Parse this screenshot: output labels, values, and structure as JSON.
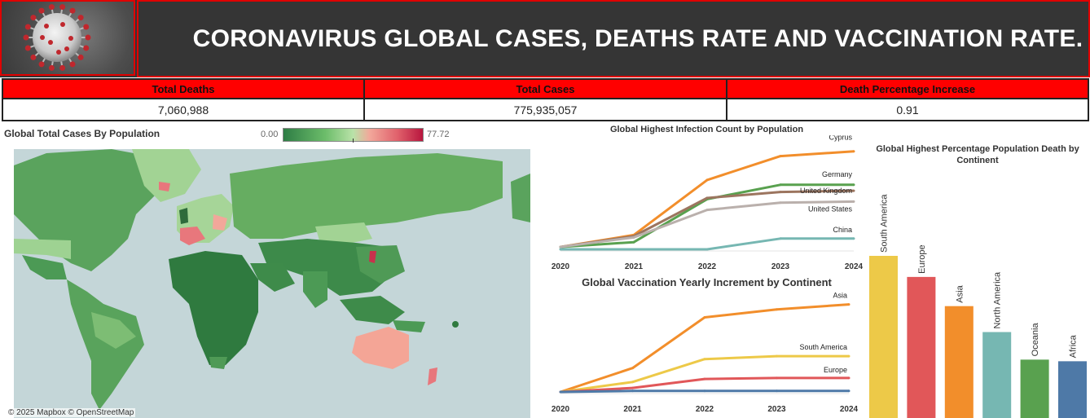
{
  "header": {
    "title": "CORONAVIRUS GLOBAL CASES, DEATHS RATE AND VACCINATION RATE."
  },
  "kpis": [
    {
      "label": "Total Deaths",
      "value": "7,060,988"
    },
    {
      "label": "Total Cases",
      "value": "775,935,057"
    },
    {
      "label": "Death Percentage Increase",
      "value": "0.91"
    }
  ],
  "map": {
    "title": "Global Total Cases By Population",
    "legend_min": "0.00",
    "legend_max": "77.72",
    "attribution": "© 2025 Mapbox © OpenStreetMap",
    "colors": {
      "low": "#2e7d45",
      "mid": "#a8d89a",
      "high": "#c9304b",
      "ocean": "#c4d6d8"
    }
  },
  "chart_data": [
    {
      "type": "line",
      "title": "Global Highest Infection Count by Population",
      "x": [
        "2020",
        "2021",
        "2022",
        "2023",
        "2024"
      ],
      "series": [
        {
          "name": "Cyprus",
          "values": [
            2,
            12,
            58,
            78,
            82
          ],
          "color": "#f28e2b"
        },
        {
          "name": "Germany",
          "values": [
            2,
            6,
            42,
            54,
            54
          ],
          "color": "#59a14f"
        },
        {
          "name": "United Kingdom",
          "values": [
            2,
            11,
            43,
            48,
            49
          ],
          "color": "#9c755f"
        },
        {
          "name": "United States",
          "values": [
            2,
            10,
            33,
            39,
            40
          ],
          "color": "#bab0ac"
        },
        {
          "name": "China",
          "values": [
            0,
            0,
            0,
            9,
            9
          ],
          "color": "#76b7b2"
        }
      ],
      "ylim": [
        0,
        90
      ]
    },
    {
      "type": "line",
      "title": "Global Vaccination Yearly Increment by Continent",
      "x": [
        "2020",
        "2021",
        "2022",
        "2023",
        "2024"
      ],
      "series": [
        {
          "name": "Asia",
          "values": [
            0,
            24,
            75,
            83,
            88
          ],
          "color": "#f28e2b"
        },
        {
          "name": "South America",
          "values": [
            0,
            10,
            33,
            36,
            36
          ],
          "color": "#edc948"
        },
        {
          "name": "Europe",
          "values": [
            0,
            4,
            13,
            14,
            14
          ],
          "color": "#e15759"
        },
        {
          "name": "",
          "values": [
            0,
            1,
            1,
            1,
            1
          ],
          "color": "#4e79a7"
        }
      ],
      "ylim": [
        0,
        100
      ]
    },
    {
      "type": "bar",
      "title": "Global Highest Percentage Population Death by Continent",
      "categories": [
        "South America",
        "Europe",
        "Asia",
        "North America",
        "Oceania",
        "Africa"
      ],
      "values": [
        100,
        87,
        69,
        53,
        36,
        35
      ],
      "colors": [
        "#edc948",
        "#e15759",
        "#f28e2b",
        "#76b7b2",
        "#59a14f",
        "#4e79a7"
      ],
      "ylim": [
        0,
        100
      ]
    }
  ]
}
